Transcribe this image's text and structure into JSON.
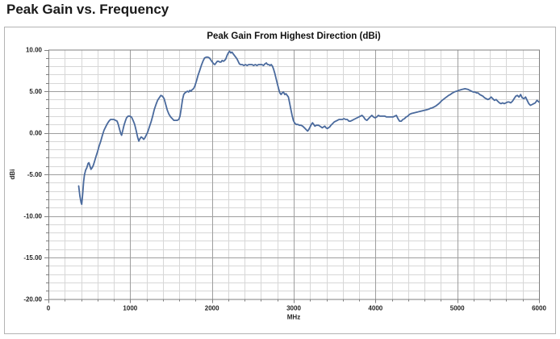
{
  "page": {
    "heading": "Peak Gain vs. Frequency"
  },
  "chart_data": {
    "type": "line",
    "title": "Peak Gain From Highest Direction (dBi)",
    "xlabel": "MHz",
    "ylabel": "dBi",
    "xlim": [
      0,
      6000
    ],
    "ylim": [
      -20,
      10
    ],
    "x_major_ticks": [
      0,
      1000,
      2000,
      3000,
      4000,
      5000,
      6000
    ],
    "x_tick_labels": [
      "0",
      "1000",
      "2000",
      "3000",
      "4000",
      "5000",
      "6000"
    ],
    "x_minor_step": 200,
    "x_major_step": 1000,
    "y_major_ticks": [
      10,
      5,
      0,
      -5,
      -10,
      -15,
      -20
    ],
    "y_tick_labels": [
      "10.00",
      "5.00",
      "0.00",
      "-5.00",
      "-10.00",
      "-15.00",
      "-20.00"
    ],
    "y_minor_step": 1,
    "y_major_step": 5,
    "grid": true,
    "legend": false,
    "colors": {
      "line": "#4a6a9d",
      "grid_minor": "#d7d7d7",
      "grid_major": "#9e9e9e",
      "axis": "#7f7f7f",
      "tick_label": "#262626"
    },
    "x": [
      370,
      385,
      400,
      408,
      420,
      430,
      440,
      455,
      470,
      485,
      495,
      505,
      520,
      535,
      550,
      565,
      580,
      600,
      620,
      640,
      660,
      680,
      700,
      720,
      740,
      760,
      780,
      800,
      820,
      840,
      855,
      870,
      885,
      895,
      910,
      925,
      940,
      955,
      975,
      995,
      1015,
      1035,
      1055,
      1075,
      1090,
      1105,
      1120,
      1135,
      1150,
      1165,
      1180,
      1195,
      1215,
      1235,
      1255,
      1275,
      1295,
      1315,
      1335,
      1355,
      1375,
      1395,
      1415,
      1435,
      1455,
      1475,
      1495,
      1515,
      1535,
      1555,
      1575,
      1595,
      1610,
      1625,
      1640,
      1655,
      1670,
      1685,
      1700,
      1715,
      1730,
      1745,
      1760,
      1775,
      1790,
      1810,
      1830,
      1850,
      1870,
      1890,
      1910,
      1930,
      1950,
      1970,
      1990,
      2005,
      2020,
      2035,
      2050,
      2065,
      2080,
      2095,
      2110,
      2125,
      2140,
      2155,
      2170,
      2185,
      2200,
      2215,
      2230,
      2245,
      2260,
      2275,
      2290,
      2305,
      2320,
      2335,
      2350,
      2370,
      2390,
      2410,
      2430,
      2450,
      2470,
      2490,
      2510,
      2530,
      2550,
      2570,
      2590,
      2610,
      2630,
      2650,
      2665,
      2680,
      2695,
      2710,
      2725,
      2740,
      2755,
      2770,
      2785,
      2800,
      2815,
      2830,
      2845,
      2860,
      2875,
      2890,
      2905,
      2920,
      2935,
      2950,
      2965,
      2980,
      2995,
      3010,
      3030,
      3050,
      3070,
      3090,
      3110,
      3130,
      3150,
      3170,
      3185,
      3200,
      3215,
      3230,
      3245,
      3260,
      3275,
      3290,
      3305,
      3320,
      3335,
      3350,
      3365,
      3380,
      3395,
      3410,
      3425,
      3440,
      3455,
      3475,
      3495,
      3515,
      3535,
      3555,
      3575,
      3595,
      3615,
      3635,
      3655,
      3675,
      3695,
      3715,
      3735,
      3755,
      3775,
      3795,
      3815,
      3835,
      3855,
      3875,
      3895,
      3915,
      3935,
      3955,
      3975,
      3995,
      4015,
      4035,
      4055,
      4075,
      4095,
      4115,
      4135,
      4155,
      4175,
      4195,
      4215,
      4235,
      4255,
      4275,
      4295,
      4315,
      4335,
      4355,
      4375,
      4395,
      4415,
      4435,
      4455,
      4475,
      4495,
      4515,
      4535,
      4555,
      4575,
      4595,
      4615,
      4635,
      4655,
      4675,
      4695,
      4715,
      4735,
      4755,
      4775,
      4795,
      4815,
      4835,
      4855,
      4875,
      4895,
      4915,
      4935,
      4955,
      4975,
      4995,
      5015,
      5035,
      5055,
      5075,
      5095,
      5115,
      5135,
      5155,
      5175,
      5195,
      5215,
      5235,
      5255,
      5275,
      5295,
      5315,
      5335,
      5355,
      5375,
      5395,
      5415,
      5435,
      5455,
      5475,
      5495,
      5515,
      5535,
      5555,
      5575,
      5595,
      5615,
      5635,
      5655,
      5675,
      5695,
      5715,
      5735,
      5755,
      5775,
      5795,
      5815,
      5835,
      5855,
      5875,
      5895,
      5915,
      5935,
      5955,
      5975,
      6000
    ],
    "y": [
      -6.4,
      -7.6,
      -8.4,
      -8.6,
      -7.2,
      -5.9,
      -5.1,
      -4.5,
      -4.2,
      -3.7,
      -3.6,
      -3.9,
      -4.4,
      -4.2,
      -3.9,
      -3.4,
      -2.9,
      -2.3,
      -1.6,
      -1.0,
      -0.3,
      0.3,
      0.7,
      1.1,
      1.4,
      1.6,
      1.6,
      1.6,
      1.5,
      1.4,
      1.0,
      0.4,
      -0.1,
      -0.3,
      0.3,
      0.9,
      1.4,
      1.8,
      2.0,
      2.0,
      1.9,
      1.5,
      1.0,
      0.2,
      -0.5,
      -1.0,
      -0.7,
      -0.5,
      -0.6,
      -0.8,
      -0.6,
      -0.3,
      0.1,
      0.7,
      1.3,
      2.0,
      2.8,
      3.4,
      3.9,
      4.2,
      4.5,
      4.4,
      4.1,
      3.4,
      2.7,
      2.2,
      1.9,
      1.7,
      1.5,
      1.5,
      1.5,
      1.6,
      2.0,
      3.0,
      4.0,
      4.6,
      4.8,
      4.9,
      5.0,
      4.9,
      5.1,
      5.0,
      5.2,
      5.3,
      5.6,
      6.2,
      6.9,
      7.5,
      8.1,
      8.6,
      9.0,
      9.1,
      9.1,
      9.0,
      8.7,
      8.5,
      8.3,
      8.2,
      8.4,
      8.6,
      8.6,
      8.5,
      8.5,
      8.7,
      8.6,
      8.7,
      8.9,
      9.3,
      9.6,
      9.8,
      9.6,
      9.7,
      9.5,
      9.3,
      9.1,
      8.9,
      8.6,
      8.3,
      8.2,
      8.2,
      8.1,
      8.2,
      8.1,
      8.2,
      8.2,
      8.2,
      8.1,
      8.2,
      8.1,
      8.2,
      8.2,
      8.2,
      8.1,
      8.3,
      8.4,
      8.2,
      8.2,
      8.1,
      8.2,
      8.0,
      7.6,
      7.1,
      6.5,
      5.9,
      5.3,
      4.8,
      4.6,
      4.8,
      4.9,
      4.6,
      4.7,
      4.5,
      4.3,
      3.6,
      2.8,
      2.1,
      1.5,
      1.2,
      1.0,
      1.0,
      0.9,
      0.9,
      0.8,
      0.6,
      0.4,
      0.2,
      0.4,
      0.7,
      1.0,
      1.2,
      1.0,
      0.8,
      0.9,
      0.9,
      0.9,
      0.8,
      0.7,
      0.6,
      0.7,
      0.8,
      0.6,
      0.5,
      0.6,
      0.7,
      0.9,
      1.1,
      1.3,
      1.4,
      1.5,
      1.6,
      1.6,
      1.6,
      1.7,
      1.6,
      1.6,
      1.4,
      1.4,
      1.5,
      1.6,
      1.7,
      1.8,
      1.9,
      2.0,
      2.1,
      1.9,
      1.6,
      1.5,
      1.7,
      1.9,
      2.1,
      1.9,
      1.8,
      1.9,
      2.1,
      2.0,
      2.0,
      2.0,
      2.0,
      1.9,
      1.9,
      1.9,
      1.9,
      1.9,
      2.0,
      2.1,
      1.7,
      1.4,
      1.4,
      1.6,
      1.7,
      1.9,
      2.0,
      2.2,
      2.3,
      2.35,
      2.4,
      2.45,
      2.5,
      2.55,
      2.6,
      2.65,
      2.7,
      2.75,
      2.8,
      2.85,
      2.95,
      3.0,
      3.1,
      3.2,
      3.35,
      3.5,
      3.7,
      3.9,
      4.05,
      4.2,
      4.35,
      4.5,
      4.6,
      4.75,
      4.85,
      4.95,
      5.0,
      5.1,
      5.15,
      5.2,
      5.25,
      5.3,
      5.25,
      5.2,
      5.1,
      5.0,
      4.9,
      4.9,
      4.8,
      4.8,
      4.6,
      4.5,
      4.4,
      4.2,
      4.1,
      4.0,
      4.1,
      4.3,
      4.1,
      3.9,
      4.0,
      3.8,
      3.6,
      3.5,
      3.6,
      3.5,
      3.6,
      3.7,
      3.7,
      3.6,
      3.8,
      4.1,
      4.4,
      4.5,
      4.3,
      4.6,
      4.2,
      4.1,
      4.3,
      3.9,
      3.5,
      3.3,
      3.4,
      3.5,
      3.6,
      3.9,
      3.7
    ]
  }
}
